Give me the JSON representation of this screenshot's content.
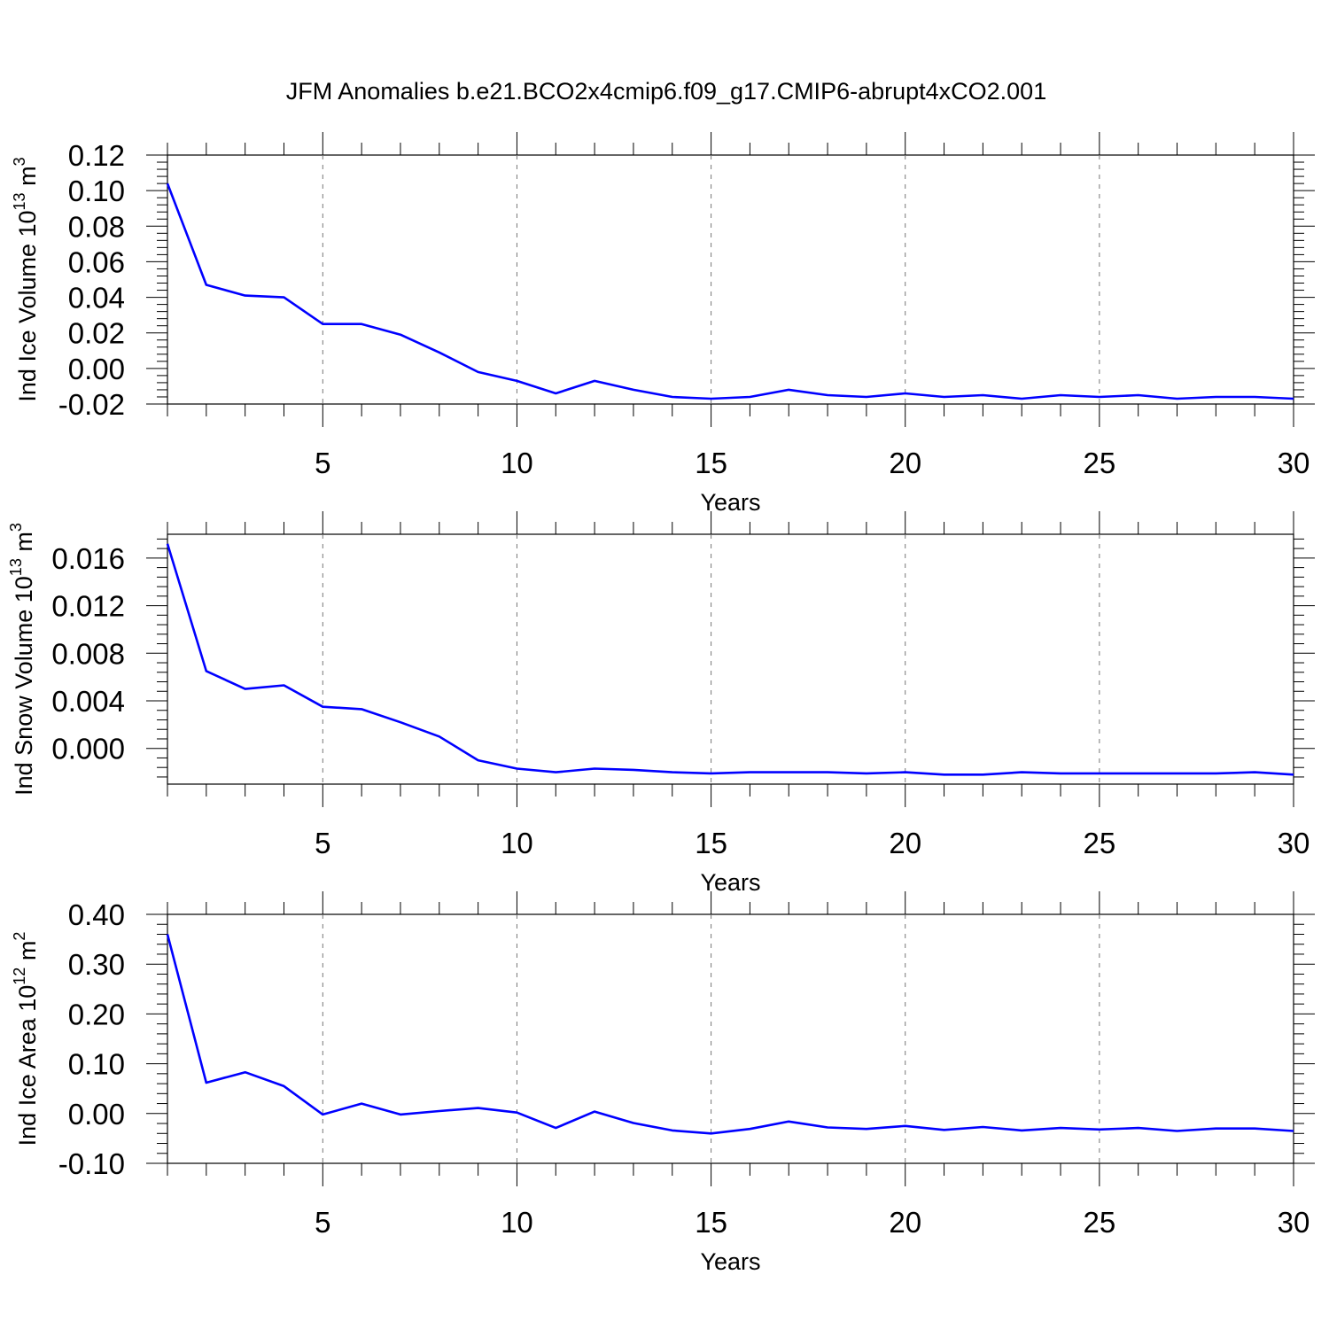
{
  "title": "JFM Anomalies b.e21.BCO2x4cmip6.f09_g17.CMIP6-abrupt4xCO2.001",
  "line_color": "#0000ff",
  "chart_data": [
    {
      "type": "line",
      "xlabel": "Years",
      "ylabel": {
        "prefix": "Ind Ice Volume 10",
        "exponent": "13",
        "unit": " m",
        "unit_exponent": "3"
      },
      "xlim": [
        1,
        30
      ],
      "ylim": [
        -0.02,
        0.12
      ],
      "xticks": [
        5,
        10,
        15,
        20,
        25,
        30
      ],
      "xtick_labels": [
        "5",
        "10",
        "15",
        "20",
        "25",
        "30"
      ],
      "yticks": [
        -0.02,
        0.0,
        0.02,
        0.04,
        0.06,
        0.08,
        0.1,
        0.12
      ],
      "ytick_labels": [
        "-0.02",
        "0.00",
        "0.02",
        "0.04",
        "0.06",
        "0.08",
        "0.10",
        "0.12"
      ],
      "grid": "vertical-dashed",
      "x": [
        1,
        2,
        3,
        4,
        5,
        6,
        7,
        8,
        9,
        10,
        11,
        12,
        13,
        14,
        15,
        16,
        17,
        18,
        19,
        20,
        21,
        22,
        23,
        24,
        25,
        26,
        27,
        28,
        29,
        30
      ],
      "values": [
        0.104,
        0.047,
        0.041,
        0.04,
        0.025,
        0.025,
        0.019,
        0.009,
        -0.002,
        -0.007,
        -0.014,
        -0.007,
        -0.012,
        -0.016,
        -0.017,
        -0.016,
        -0.012,
        -0.015,
        -0.016,
        -0.014,
        -0.016,
        -0.015,
        -0.017,
        -0.015,
        -0.016,
        -0.015,
        -0.017,
        -0.016,
        -0.016,
        -0.017
      ]
    },
    {
      "type": "line",
      "xlabel": "Years",
      "ylabel": {
        "prefix": "Ind Snow Volume 10",
        "exponent": "13",
        "unit": " m",
        "unit_exponent": "3"
      },
      "xlim": [
        1,
        30
      ],
      "ylim": [
        -0.003,
        0.018
      ],
      "xticks": [
        5,
        10,
        15,
        20,
        25,
        30
      ],
      "xtick_labels": [
        "5",
        "10",
        "15",
        "20",
        "25",
        "30"
      ],
      "yticks": [
        0.0,
        0.004,
        0.008,
        0.012,
        0.016
      ],
      "ytick_labels": [
        "0.000",
        "0.004",
        "0.008",
        "0.012",
        "0.016"
      ],
      "grid": "vertical-dashed",
      "x": [
        1,
        2,
        3,
        4,
        5,
        6,
        7,
        8,
        9,
        10,
        11,
        12,
        13,
        14,
        15,
        16,
        17,
        18,
        19,
        20,
        21,
        22,
        23,
        24,
        25,
        26,
        27,
        28,
        29,
        30
      ],
      "values": [
        0.0172,
        0.0065,
        0.005,
        0.0053,
        0.0035,
        0.0033,
        0.0022,
        0.001,
        -0.001,
        -0.0017,
        -0.002,
        -0.0017,
        -0.0018,
        -0.002,
        -0.0021,
        -0.002,
        -0.002,
        -0.002,
        -0.0021,
        -0.002,
        -0.0022,
        -0.0022,
        -0.002,
        -0.0021,
        -0.0021,
        -0.0021,
        -0.0021,
        -0.0021,
        -0.002,
        -0.0022
      ]
    },
    {
      "type": "line",
      "xlabel": "Years",
      "ylabel": {
        "prefix": "Ind Ice Area 10",
        "exponent": "12",
        "unit": " m",
        "unit_exponent": "2"
      },
      "xlim": [
        1,
        30
      ],
      "ylim": [
        -0.1,
        0.4
      ],
      "xticks": [
        5,
        10,
        15,
        20,
        25,
        30
      ],
      "xtick_labels": [
        "5",
        "10",
        "15",
        "20",
        "25",
        "30"
      ],
      "yticks": [
        -0.1,
        0.0,
        0.1,
        0.2,
        0.3,
        0.4
      ],
      "ytick_labels": [
        "-0.10",
        "0.00",
        "0.10",
        "0.20",
        "0.30",
        "0.40"
      ],
      "grid": "vertical-dashed",
      "x": [
        1,
        2,
        3,
        4,
        5,
        6,
        7,
        8,
        9,
        10,
        11,
        12,
        13,
        14,
        15,
        16,
        17,
        18,
        19,
        20,
        21,
        22,
        23,
        24,
        25,
        26,
        27,
        28,
        29,
        30
      ],
      "values": [
        0.36,
        0.062,
        0.083,
        0.055,
        -0.002,
        0.02,
        -0.002,
        0.005,
        0.011,
        0.002,
        -0.029,
        0.004,
        -0.019,
        -0.034,
        -0.04,
        -0.031,
        -0.016,
        -0.028,
        -0.031,
        -0.025,
        -0.033,
        -0.027,
        -0.034,
        -0.029,
        -0.032,
        -0.029,
        -0.035,
        -0.03,
        -0.03,
        -0.035
      ]
    }
  ]
}
